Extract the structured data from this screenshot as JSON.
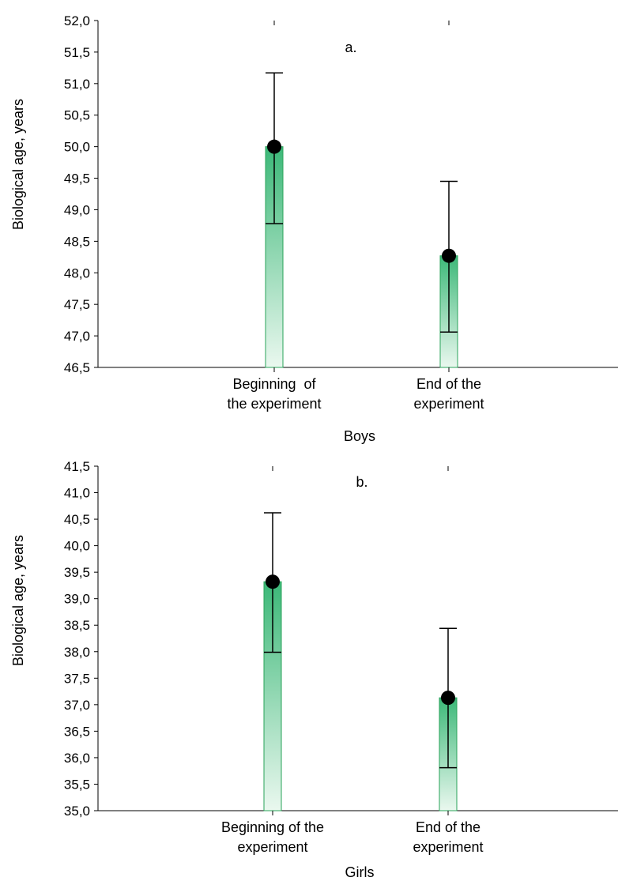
{
  "chart_data": [
    {
      "type": "bar",
      "panel_label": "a.",
      "xlabel": "Boys",
      "ylabel": "Biological age, years",
      "ylim": [
        46.5,
        52.0
      ],
      "yticks": [
        "46,5",
        "47,0",
        "47,5",
        "48,0",
        "48,5",
        "49,0",
        "49,5",
        "50,0",
        "50,5",
        "51,0",
        "51,5",
        "52,0"
      ],
      "categories": [
        {
          "lines": [
            "Beginning  of",
            "the experiment"
          ]
        },
        {
          "lines": [
            "End of the",
            "experiment"
          ]
        }
      ],
      "values": [
        50.0,
        48.27
      ],
      "error_upper": [
        51.17,
        49.45
      ],
      "error_lower": [
        48.78,
        47.06
      ],
      "colors": {
        "bar_top": "#3cb878",
        "bar_bottom": "#eaf8ef",
        "bar_edge": "#2aa35a",
        "point": "#000000"
      }
    },
    {
      "type": "bar",
      "panel_label": "b.",
      "xlabel": "Girls",
      "ylabel": "Biological age, years",
      "ylim": [
        35.0,
        41.5
      ],
      "yticks": [
        "35,0",
        "35,5",
        "36,0",
        "36,5",
        "37,0",
        "37,5",
        "38,0",
        "38,5",
        "39,0",
        "39,5",
        "40,0",
        "40,5",
        "41,0",
        "41,5"
      ],
      "categories": [
        {
          "lines": [
            "Beginning of the",
            "experiment"
          ]
        },
        {
          "lines": [
            "End of the",
            "experiment"
          ]
        }
      ],
      "values": [
        39.32,
        37.13
      ],
      "error_upper": [
        40.62,
        38.44
      ],
      "error_lower": [
        37.99,
        35.81
      ],
      "colors": {
        "bar_top": "#3cb878",
        "bar_bottom": "#eaf8ef",
        "bar_edge": "#2aa35a",
        "point": "#000000"
      }
    }
  ]
}
